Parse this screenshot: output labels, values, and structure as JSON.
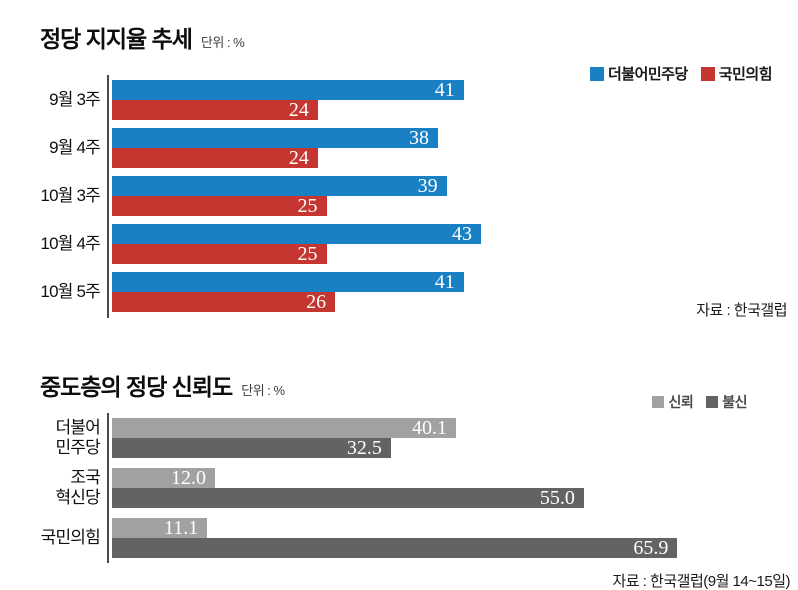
{
  "chart_data": [
    {
      "type": "bar",
      "orientation": "horizontal",
      "title": "정당 지지율 추세",
      "unit_label": "단위 : %",
      "categories": [
        "9월 3주",
        "9월 4주",
        "10월 3주",
        "10월 4주",
        "10월 5주"
      ],
      "series": [
        {
          "name": "더불어민주당",
          "color": "#1a80c4",
          "values": [
            41,
            38,
            39,
            43,
            41
          ],
          "labels": [
            "41",
            "38",
            "39",
            "43",
            "41"
          ]
        },
        {
          "name": "국민의힘",
          "color": "#c4362f",
          "values": [
            24,
            24,
            25,
            25,
            26
          ],
          "labels": [
            "24",
            "24",
            "25",
            "25",
            "26"
          ]
        }
      ],
      "xlim": [
        0,
        46
      ],
      "grid": false,
      "legend_position": "top-right",
      "source": "자료 : 한국갤럽"
    },
    {
      "type": "bar",
      "orientation": "horizontal",
      "title": "중도층의 정당 신뢰도",
      "unit_label": "단위 : %",
      "categories": [
        "더불어\n민주당",
        "조국\n혁신당",
        "국민의힘"
      ],
      "series": [
        {
          "name": "신뢰",
          "color": "#a1a1a1",
          "values": [
            40.1,
            12.0,
            11.1
          ],
          "labels": [
            "40.1",
            "12.0",
            "11.1"
          ]
        },
        {
          "name": "불신",
          "color": "#636363",
          "values": [
            32.5,
            55.0,
            65.9
          ],
          "labels": [
            "32.5",
            "55.0",
            "65.9"
          ]
        }
      ],
      "xlim": [
        0,
        80
      ],
      "grid": false,
      "legend_position": "top-right",
      "source": "자료 : 한국갤럽(9월 14~15일)"
    }
  ],
  "colors": {
    "minjoo_blue": "#1a80c4",
    "ppp_red": "#c4362f",
    "trust_light_gray": "#a1a1a1",
    "distrust_dark_gray": "#636363",
    "axis": "#4a4a4a"
  }
}
